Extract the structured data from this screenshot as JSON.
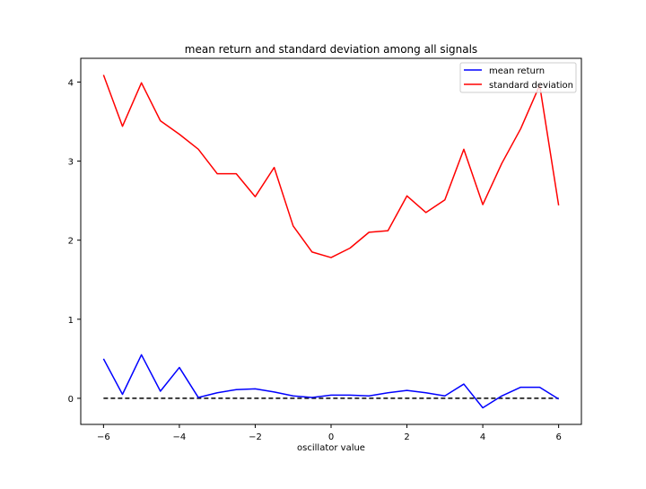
{
  "chart_data": {
    "type": "line",
    "title": "mean return and standard deviation among all signals",
    "xlabel": "oscillator value",
    "ylabel": "",
    "xlim": [
      -6.6,
      6.6
    ],
    "ylim": [
      -0.33,
      4.3
    ],
    "xticks": [
      -6,
      -4,
      -2,
      0,
      2,
      4,
      6
    ],
    "xtick_labels": [
      "−6",
      "−4",
      "−2",
      "0",
      "2",
      "4",
      "6"
    ],
    "yticks": [
      0,
      1,
      2,
      3,
      4
    ],
    "ytick_labels": [
      "0",
      "1",
      "2",
      "3",
      "4"
    ],
    "grid": false,
    "legend": {
      "position": "top-right"
    },
    "x": [
      -6,
      -5.5,
      -5,
      -4.5,
      -4,
      -3.5,
      -3,
      -2.5,
      -2,
      -1.5,
      -1,
      -0.5,
      0,
      0.5,
      1,
      1.5,
      2,
      2.5,
      3,
      3.5,
      4,
      4.5,
      5,
      5.5,
      6
    ],
    "series": [
      {
        "name": "mean return",
        "color": "#0000ff",
        "values": [
          0.5,
          0.05,
          0.55,
          0.09,
          0.39,
          0.01,
          0.07,
          0.11,
          0.12,
          0.08,
          0.03,
          0.01,
          0.04,
          0.04,
          0.03,
          0.07,
          0.1,
          0.07,
          0.03,
          0.18,
          -0.12,
          0.03,
          0.14,
          0.14,
          -0.01
        ]
      },
      {
        "name": "standard deviation",
        "color": "#ff0000",
        "values": [
          4.09,
          3.44,
          3.99,
          3.51,
          3.34,
          3.15,
          2.84,
          2.84,
          2.55,
          2.92,
          2.18,
          1.85,
          1.78,
          1.9,
          2.1,
          2.12,
          2.56,
          2.35,
          2.51,
          3.15,
          2.45,
          2.97,
          3.41,
          3.96,
          2.44
        ]
      }
    ],
    "reference_line": {
      "y": 0,
      "x_range": [
        -6,
        6
      ],
      "style": "dashed",
      "color": "#000000"
    }
  }
}
